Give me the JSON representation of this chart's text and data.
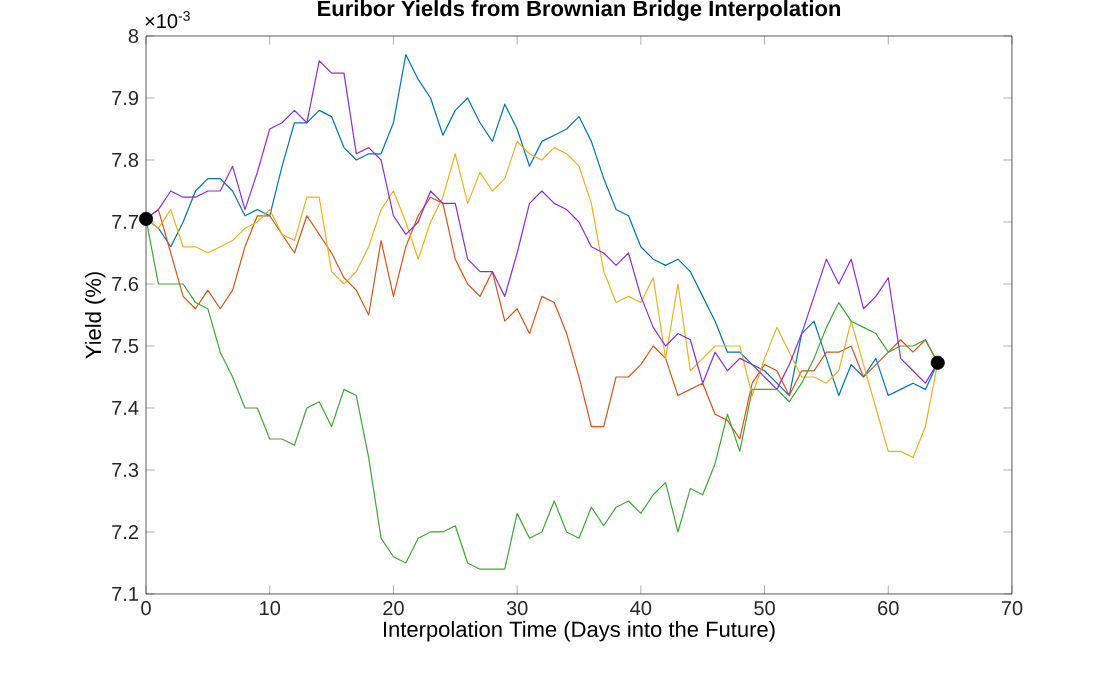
{
  "chart_data": {
    "type": "line",
    "title": "Euribor Yields from Brownian Bridge Interpolation",
    "xlabel": "Interpolation Time (Days into the Future)",
    "ylabel": "Yield (%)",
    "annotations": [
      "×10$^{-3}$"
    ],
    "xlim": [
      0,
      70
    ],
    "xticks": [
      0,
      10,
      20,
      30,
      40,
      50,
      60,
      70
    ],
    "ylim": [
      7.1,
      8
    ],
    "yticks": [
      7.1,
      7.2,
      7.3,
      7.4,
      7.5,
      7.6,
      7.7,
      7.8,
      7.9,
      8
    ],
    "grid": false,
    "marker": "none",
    "line_style": "solid",
    "series": [
      {
        "color": "#0072bd",
        "x": [
          0,
          1,
          2,
          3,
          4,
          5,
          6,
          7,
          8,
          9,
          10,
          11,
          12,
          13,
          14,
          15,
          16,
          17,
          18,
          19,
          20,
          21,
          22,
          23,
          24,
          25,
          26,
          27,
          28,
          29,
          30,
          31,
          32,
          33,
          34,
          35,
          36,
          37,
          38,
          39,
          40,
          41,
          42,
          43,
          44,
          45,
          46,
          47,
          48,
          49,
          50,
          51,
          52,
          53,
          54,
          55,
          56,
          57,
          58,
          59,
          60,
          61,
          62,
          63,
          64
        ],
        "values": [
          7.705,
          7.69,
          7.66,
          7.7,
          7.75,
          7.77,
          7.77,
          7.75,
          7.71,
          7.72,
          7.71,
          7.79,
          7.86,
          7.86,
          7.88,
          7.87,
          7.82,
          7.8,
          7.81,
          7.81,
          7.86,
          7.97,
          7.93,
          7.9,
          7.84,
          7.88,
          7.9,
          7.86,
          7.83,
          7.89,
          7.85,
          7.79,
          7.83,
          7.84,
          7.85,
          7.87,
          7.83,
          7.77,
          7.72,
          7.71,
          7.66,
          7.64,
          7.63,
          7.64,
          7.62,
          7.58,
          7.54,
          7.49,
          7.49,
          7.47,
          7.46,
          7.44,
          7.42,
          7.52,
          7.54,
          7.48,
          7.42,
          7.47,
          7.45,
          7.48,
          7.42,
          7.43,
          7.44,
          7.43,
          7.473
        ]
      },
      {
        "color": "#d95319",
        "x": [
          0,
          1,
          2,
          3,
          4,
          5,
          6,
          7,
          8,
          9,
          10,
          11,
          12,
          13,
          14,
          15,
          16,
          17,
          18,
          19,
          20,
          21,
          22,
          23,
          24,
          25,
          26,
          27,
          28,
          29,
          30,
          31,
          32,
          33,
          34,
          35,
          36,
          37,
          38,
          39,
          40,
          41,
          42,
          43,
          44,
          45,
          46,
          47,
          48,
          49,
          50,
          51,
          52,
          53,
          54,
          55,
          56,
          57,
          58,
          59,
          60,
          61,
          62,
          63,
          64
        ],
        "values": [
          7.705,
          7.72,
          7.65,
          7.58,
          7.56,
          7.59,
          7.56,
          7.59,
          7.66,
          7.71,
          7.71,
          7.68,
          7.65,
          7.71,
          7.68,
          7.65,
          7.61,
          7.59,
          7.55,
          7.67,
          7.58,
          7.66,
          7.71,
          7.74,
          7.73,
          7.64,
          7.6,
          7.58,
          7.62,
          7.54,
          7.56,
          7.52,
          7.58,
          7.57,
          7.52,
          7.45,
          7.37,
          7.37,
          7.45,
          7.45,
          7.47,
          7.5,
          7.48,
          7.42,
          7.43,
          7.44,
          7.39,
          7.38,
          7.35,
          7.44,
          7.47,
          7.46,
          7.42,
          7.46,
          7.46,
          7.49,
          7.49,
          7.5,
          7.45,
          7.47,
          7.49,
          7.51,
          7.49,
          7.51,
          7.473
        ]
      },
      {
        "color": "#edb120",
        "x": [
          0,
          1,
          2,
          3,
          4,
          5,
          6,
          7,
          8,
          9,
          10,
          11,
          12,
          13,
          14,
          15,
          16,
          17,
          18,
          19,
          20,
          21,
          22,
          23,
          24,
          25,
          26,
          27,
          28,
          29,
          30,
          31,
          32,
          33,
          34,
          35,
          36,
          37,
          38,
          39,
          40,
          41,
          42,
          43,
          44,
          45,
          46,
          47,
          48,
          49,
          50,
          51,
          52,
          53,
          54,
          55,
          56,
          57,
          58,
          59,
          60,
          61,
          62,
          63,
          64
        ],
        "values": [
          7.705,
          7.69,
          7.72,
          7.66,
          7.66,
          7.65,
          7.66,
          7.67,
          7.69,
          7.7,
          7.72,
          7.68,
          7.67,
          7.74,
          7.74,
          7.62,
          7.6,
          7.62,
          7.66,
          7.72,
          7.75,
          7.7,
          7.64,
          7.7,
          7.74,
          7.81,
          7.73,
          7.78,
          7.75,
          7.77,
          7.83,
          7.81,
          7.8,
          7.82,
          7.81,
          7.79,
          7.73,
          7.62,
          7.57,
          7.58,
          7.57,
          7.61,
          7.48,
          7.6,
          7.46,
          7.48,
          7.5,
          7.5,
          7.5,
          7.42,
          7.48,
          7.53,
          7.49,
          7.45,
          7.45,
          7.44,
          7.46,
          7.54,
          7.47,
          7.4,
          7.33,
          7.33,
          7.32,
          7.37,
          7.473
        ]
      },
      {
        "color": "#8b2be2",
        "x": [
          0,
          1,
          2,
          3,
          4,
          5,
          6,
          7,
          8,
          9,
          10,
          11,
          12,
          13,
          14,
          15,
          16,
          17,
          18,
          19,
          20,
          21,
          22,
          23,
          24,
          25,
          26,
          27,
          28,
          29,
          30,
          31,
          32,
          33,
          34,
          35,
          36,
          37,
          38,
          39,
          40,
          41,
          42,
          43,
          44,
          45,
          46,
          47,
          48,
          49,
          50,
          51,
          52,
          53,
          54,
          55,
          56,
          57,
          58,
          59,
          60,
          61,
          62,
          63,
          64
        ],
        "values": [
          7.705,
          7.72,
          7.75,
          7.74,
          7.74,
          7.75,
          7.75,
          7.79,
          7.72,
          7.78,
          7.85,
          7.86,
          7.88,
          7.86,
          7.96,
          7.94,
          7.94,
          7.81,
          7.82,
          7.8,
          7.71,
          7.68,
          7.7,
          7.75,
          7.73,
          7.73,
          7.64,
          7.62,
          7.62,
          7.58,
          7.65,
          7.73,
          7.75,
          7.73,
          7.72,
          7.7,
          7.66,
          7.65,
          7.63,
          7.65,
          7.58,
          7.53,
          7.5,
          7.52,
          7.51,
          7.44,
          7.49,
          7.46,
          7.48,
          7.47,
          7.45,
          7.43,
          7.47,
          7.52,
          7.58,
          7.64,
          7.6,
          7.64,
          7.56,
          7.58,
          7.61,
          7.48,
          7.46,
          7.44,
          7.473
        ]
      },
      {
        "color": "#3fa535",
        "x": [
          0,
          1,
          2,
          3,
          4,
          5,
          6,
          7,
          8,
          9,
          10,
          11,
          12,
          13,
          14,
          15,
          16,
          17,
          18,
          19,
          20,
          21,
          22,
          23,
          24,
          25,
          26,
          27,
          28,
          29,
          30,
          31,
          32,
          33,
          34,
          35,
          36,
          37,
          38,
          39,
          40,
          41,
          42,
          43,
          44,
          45,
          46,
          47,
          48,
          49,
          50,
          51,
          52,
          53,
          54,
          55,
          56,
          57,
          58,
          59,
          60,
          61,
          62,
          63,
          64
        ],
        "values": [
          7.705,
          7.6,
          7.6,
          7.6,
          7.57,
          7.56,
          7.49,
          7.45,
          7.4,
          7.4,
          7.35,
          7.35,
          7.34,
          7.4,
          7.41,
          7.37,
          7.43,
          7.42,
          7.32,
          7.19,
          7.16,
          7.15,
          7.19,
          7.2,
          7.2,
          7.21,
          7.15,
          7.14,
          7.14,
          7.14,
          7.23,
          7.19,
          7.2,
          7.25,
          7.2,
          7.19,
          7.24,
          7.21,
          7.24,
          7.25,
          7.23,
          7.26,
          7.28,
          7.2,
          7.27,
          7.26,
          7.31,
          7.39,
          7.33,
          7.43,
          7.43,
          7.43,
          7.41,
          7.44,
          7.48,
          7.53,
          7.57,
          7.54,
          7.53,
          7.52,
          7.49,
          7.5,
          7.5,
          7.51,
          7.473
        ]
      },
      {
        "type": "scatter",
        "marker": "circle",
        "color": "#000000",
        "x": [
          0,
          64
        ],
        "values": [
          7.705,
          7.473
        ]
      }
    ]
  }
}
